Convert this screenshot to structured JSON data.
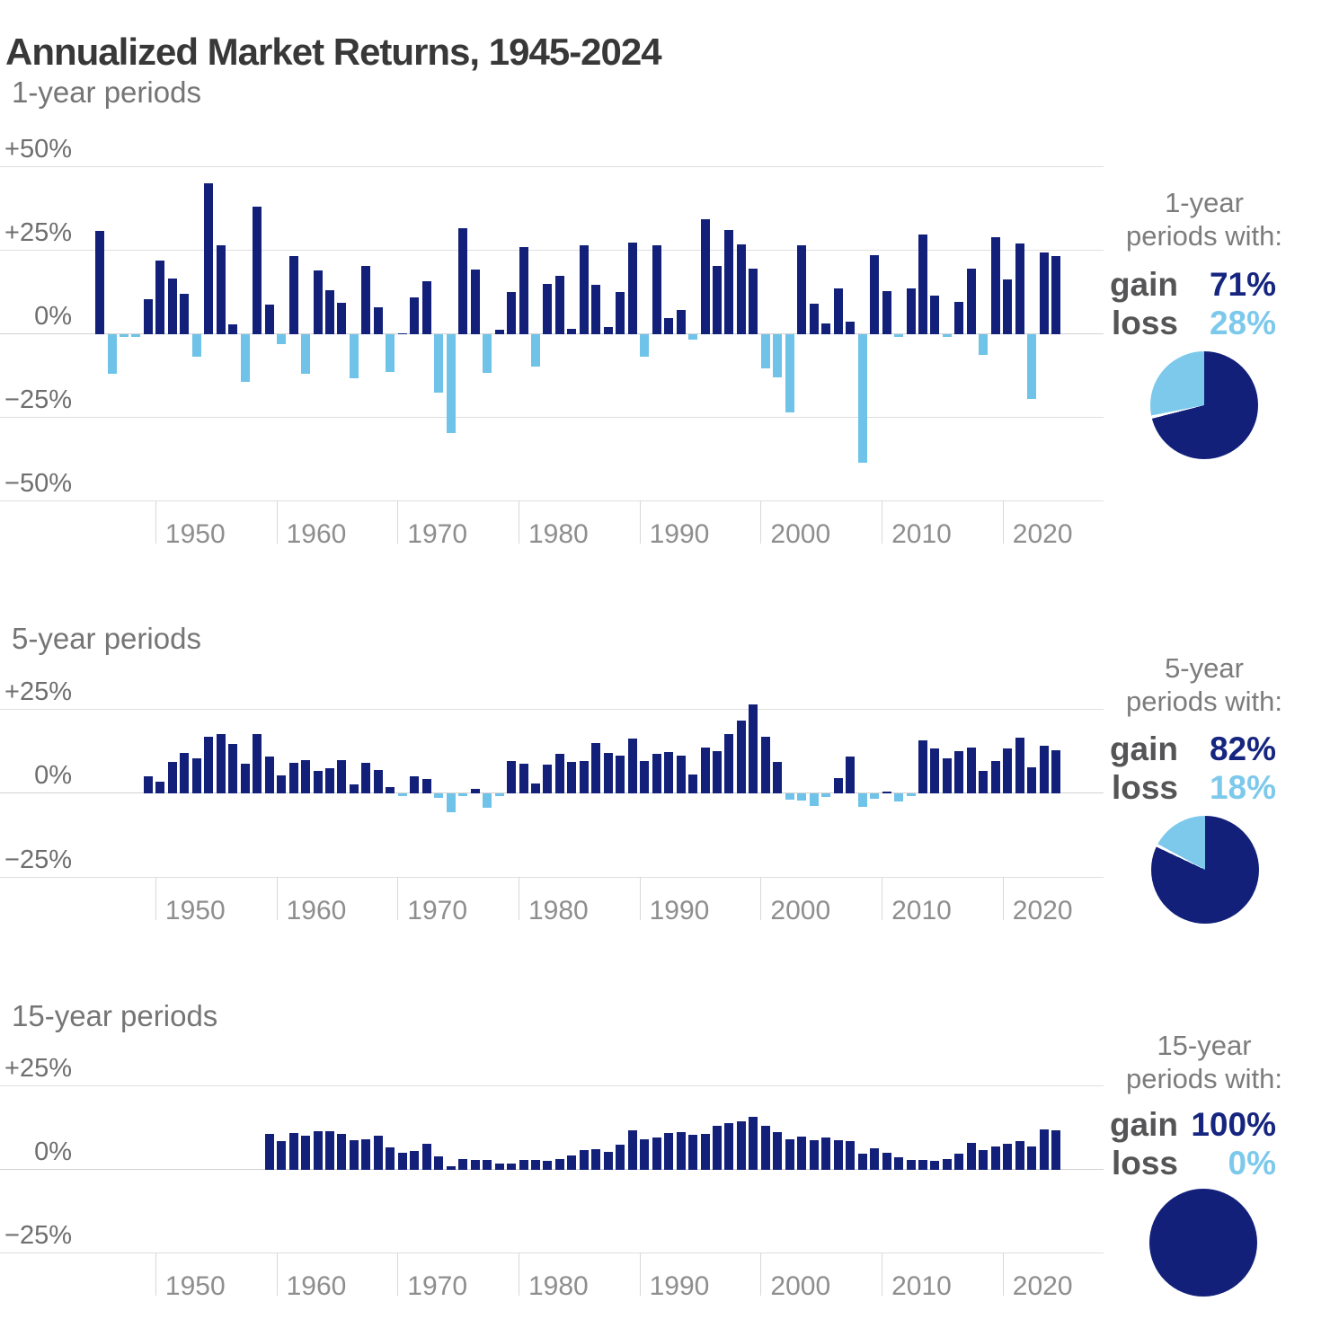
{
  "title": "Annualized Market Returns, 1945-2024",
  "colors": {
    "gain_bar": "#12207a",
    "loss_bar": "#6fc3e8",
    "gain_text": "#16257f",
    "loss_text": "#7cc9ec",
    "pie_divider": "#ffffff"
  },
  "chart_data": {
    "type": "bar",
    "unit": "annualized return, percent",
    "grid": "horizontal gridlines on",
    "charts": [
      {
        "id": "one-year",
        "type": "bar",
        "label": "1-year periods",
        "start_year": 1945,
        "end_year": 2024,
        "ylim": [
          -50,
          50
        ],
        "y_ticks": [
          {
            "v": 50,
            "t": "+50%"
          },
          {
            "v": 25,
            "t": "+25%"
          },
          {
            "v": 0,
            "t": "0%"
          },
          {
            "v": -25,
            "t": "−25%"
          },
          {
            "v": -50,
            "t": "−50%"
          }
        ],
        "x_ticks": [
          1950,
          1960,
          1970,
          1980,
          1990,
          2000,
          2010,
          2020
        ],
        "values": [
          30.7,
          -11.9,
          0.0,
          -0.7,
          10.3,
          21.8,
          16.5,
          11.8,
          -6.6,
          45.0,
          26.4,
          2.6,
          -14.3,
          38.1,
          8.5,
          -3.0,
          23.1,
          -11.8,
          18.9,
          13.0,
          9.1,
          -13.1,
          20.1,
          7.7,
          -11.4,
          0.1,
          10.8,
          15.6,
          -17.4,
          -29.7,
          31.5,
          19.1,
          -11.5,
          1.1,
          12.3,
          25.8,
          -9.7,
          14.8,
          17.3,
          1.4,
          26.3,
          14.6,
          2.0,
          12.4,
          27.3,
          -6.6,
          26.3,
          4.5,
          7.1,
          -1.5,
          34.1,
          20.3,
          31.0,
          26.7,
          19.5,
          -10.1,
          -13.0,
          -23.4,
          26.4,
          9.0,
          3.0,
          13.6,
          3.5,
          -38.5,
          23.5,
          12.8,
          0.0,
          13.4,
          29.6,
          11.4,
          -0.7,
          9.5,
          19.4,
          -6.2,
          28.9,
          16.3,
          26.9,
          -19.4,
          24.2,
          23.3
        ],
        "summary": {
          "line1": "1-year",
          "line2": "periods with:",
          "gain_label": "gain",
          "gain_value": "71%",
          "loss_label": "loss",
          "loss_value": "28%",
          "gain_pct": 71,
          "loss_pct": 28
        }
      },
      {
        "id": "five-year",
        "type": "bar",
        "label": "5-year periods",
        "start_year": 1949,
        "end_year": 2024,
        "ylim": [
          -25,
          25
        ],
        "y_ticks": [
          {
            "v": 25,
            "t": "+25%"
          },
          {
            "v": 0,
            "t": "0%"
          },
          {
            "v": -25,
            "t": "−25%"
          }
        ],
        "x_ticks": [
          1950,
          1960,
          1970,
          1980,
          1990,
          2000,
          2010,
          2020
        ],
        "values": [
          4.8,
          3.3,
          9.2,
          11.7,
          10.3,
          16.5,
          17.4,
          14.5,
          8.5,
          17.4,
          10.7,
          5.0,
          8.9,
          9.6,
          6.3,
          7.2,
          9.7,
          2.4,
          8.9,
          6.7,
          1.7,
          -0.1,
          4.9,
          4.1,
          -1.3,
          -5.7,
          -0.4,
          1.0,
          -4.3,
          -0.3,
          9.5,
          8.5,
          2.7,
          8.2,
          11.4,
          9.2,
          9.3,
          14.6,
          11.9,
          11.0,
          16.1,
          9.3,
          11.5,
          12.0,
          10.9,
          5.4,
          13.3,
          12.2,
          17.4,
          21.4,
          26.2,
          16.5,
          9.2,
          -1.9,
          -2.0,
          -3.8,
          -1.1,
          4.3,
          10.8,
          -4.1,
          -1.7,
          0.2,
          -2.4,
          -0.6,
          15.4,
          13.1,
          10.2,
          12.2,
          13.4,
          6.3,
          9.4,
          13.0,
          16.3,
          7.5,
          13.8,
          12.7
        ],
        "summary": {
          "line1": "5-year",
          "line2": "periods with:",
          "gain_label": "gain",
          "gain_value": "82%",
          "loss_label": "loss",
          "loss_value": "18%",
          "gain_pct": 82,
          "loss_pct": 18
        }
      },
      {
        "id": "fifteen-year",
        "type": "bar",
        "label": "15-year periods",
        "start_year": 1959,
        "end_year": 2024,
        "ylim": [
          -25,
          25
        ],
        "y_ticks": [
          {
            "v": 25,
            "t": "+25%"
          },
          {
            "v": 0,
            "t": "0%"
          },
          {
            "v": -25,
            "t": "−25%"
          }
        ],
        "x_ticks": [
          1950,
          1960,
          1970,
          1980,
          1990,
          2000,
          2010,
          2020
        ],
        "values": [
          10.6,
          8.4,
          10.8,
          9.9,
          11.2,
          11.4,
          10.6,
          8.5,
          9.0,
          10.0,
          6.5,
          4.8,
          5.4,
          7.5,
          3.9,
          0.9,
          3.0,
          2.7,
          2.8,
          1.7,
          1.6,
          2.6,
          2.8,
          2.5,
          3.1,
          4.1,
          5.7,
          5.9,
          5.1,
          7.2,
          11.6,
          9.0,
          9.5,
          10.7,
          11.1,
          10.2,
          10.6,
          12.8,
          13.8,
          14.3,
          15.6,
          13.0,
          11.0,
          8.9,
          9.7,
          8.6,
          9.3,
          8.5,
          8.4,
          4.5,
          6.1,
          4.9,
          3.6,
          2.6,
          2.8,
          2.3,
          3.0,
          4.6,
          7.7,
          5.6,
          6.8,
          7.6,
          8.4,
          6.6,
          11.8,
          11.7
        ],
        "summary": {
          "line1": "15-year",
          "line2": "periods with:",
          "gain_label": "gain",
          "gain_value": "100%",
          "loss_label": "loss",
          "loss_value": "0%",
          "gain_pct": 100,
          "loss_pct": 0
        }
      }
    ]
  }
}
